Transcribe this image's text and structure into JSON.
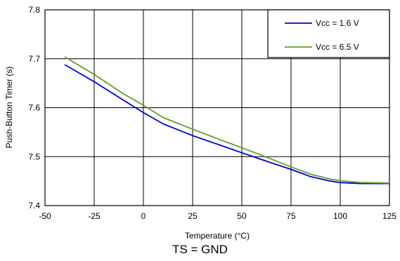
{
  "chart_data": {
    "type": "line",
    "xlabel": "Temperature (°C)",
    "ylabel": "Push-Button Timer (s)",
    "xlim": [
      -50,
      125
    ],
    "ylim": [
      7.4,
      7.8
    ],
    "x_ticks": [
      "-50",
      "-25",
      "0",
      "25",
      "50",
      "75",
      "100",
      "125"
    ],
    "y_ticks": [
      "7.4",
      "7.5",
      "7.6",
      "7.7",
      "7.8"
    ],
    "grid": true,
    "legend_position": "top-right",
    "series": [
      {
        "name": "Vcc = 1.6 V",
        "color": "#0000cc",
        "x": [
          -40,
          -25,
          -10,
          0,
          10,
          25,
          40,
          50,
          60,
          75,
          85,
          95,
          100,
          110,
          125
        ],
        "y": [
          7.688,
          7.653,
          7.615,
          7.59,
          7.567,
          7.543,
          7.522,
          7.508,
          7.494,
          7.474,
          7.459,
          7.45,
          7.447,
          7.445,
          7.445
        ]
      },
      {
        "name": "Vcc = 6.5 V",
        "color": "#669933",
        "x": [
          -40,
          -25,
          -10,
          0,
          10,
          25,
          40,
          50,
          60,
          75,
          85,
          95,
          100,
          110,
          125
        ],
        "y": [
          7.704,
          7.668,
          7.628,
          7.605,
          7.58,
          7.556,
          7.533,
          7.518,
          7.503,
          7.479,
          7.464,
          7.454,
          7.451,
          7.447,
          7.446
        ]
      }
    ]
  },
  "caption": "TS = GND"
}
